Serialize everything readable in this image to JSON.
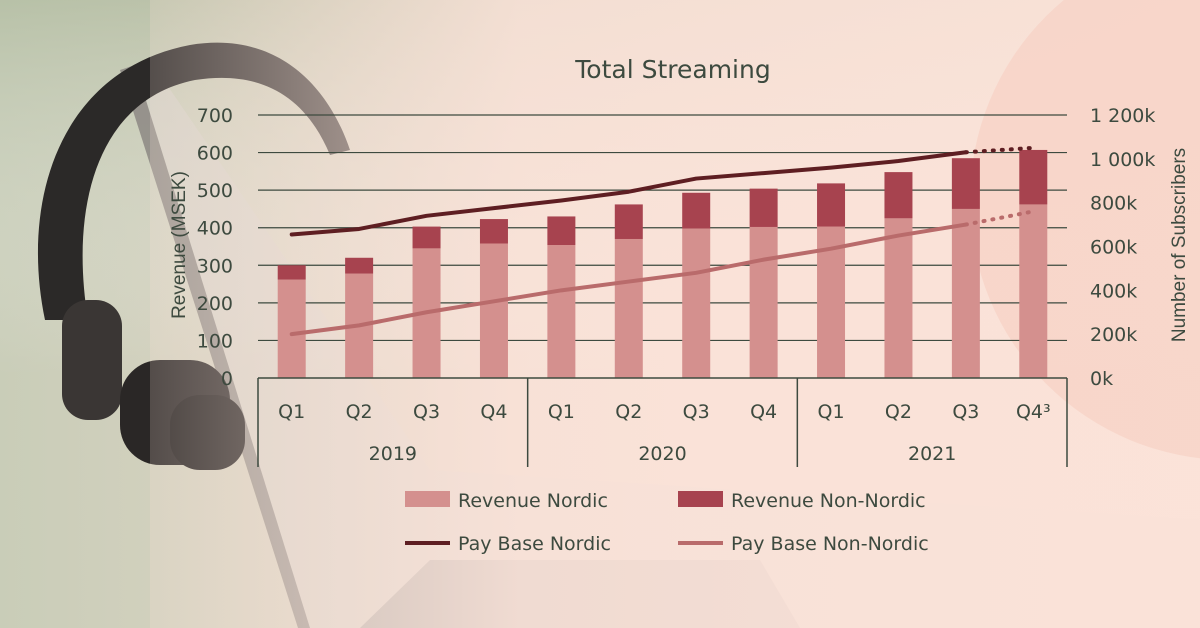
{
  "chart_data": {
    "type": "bar",
    "title": "Total Streaming",
    "ylabel": "Revenue (MSEK)",
    "y2label": "Number of Subscribers",
    "ylim": [
      0,
      700
    ],
    "y2lim": [
      0,
      1200
    ],
    "yticks": [
      "0",
      "100",
      "200",
      "300",
      "400",
      "500",
      "600",
      "700"
    ],
    "y2ticks": [
      "0k",
      "200k",
      "400k",
      "600k",
      "800k",
      "1 000k",
      "1 200k"
    ],
    "categories": [
      "Q1",
      "Q2",
      "Q3",
      "Q4",
      "Q1",
      "Q2",
      "Q3",
      "Q4",
      "Q1",
      "Q2",
      "Q3",
      "Q4³"
    ],
    "groups": [
      {
        "label": "2019",
        "start": 0,
        "end": 3
      },
      {
        "label": "2020",
        "start": 4,
        "end": 7
      },
      {
        "label": "2021",
        "start": 8,
        "end": 11
      }
    ],
    "series": [
      {
        "name": "Revenue Nordic",
        "kind": "bar",
        "color": "#d4908e",
        "values": [
          262,
          278,
          345,
          358,
          354,
          370,
          398,
          402,
          403,
          425,
          450,
          462
        ]
      },
      {
        "name": "Revenue Non-Nordic",
        "kind": "bar",
        "color": "#a7434f",
        "values": [
          38,
          42,
          58,
          65,
          76,
          92,
          95,
          102,
          115,
          123,
          135,
          145
        ]
      },
      {
        "name": "Pay Base Nordic",
        "kind": "line",
        "axis": "right",
        "color": "#5e1e22",
        "values": [
          655,
          680,
          740,
          775,
          810,
          850,
          910,
          935,
          960,
          990,
          1030,
          1050
        ],
        "projected_from": 10
      },
      {
        "name": "Pay Base Non-Nordic",
        "kind": "line",
        "axis": "right",
        "color": "#b96b6b",
        "values": [
          200,
          240,
          300,
          350,
          400,
          440,
          480,
          540,
          590,
          650,
          700,
          760
        ],
        "projected_from": 10
      }
    ],
    "grid": true,
    "legend_position": "bottom"
  },
  "colors": {
    "axis": "#3d4a3f",
    "text": "#3d4a3f"
  }
}
